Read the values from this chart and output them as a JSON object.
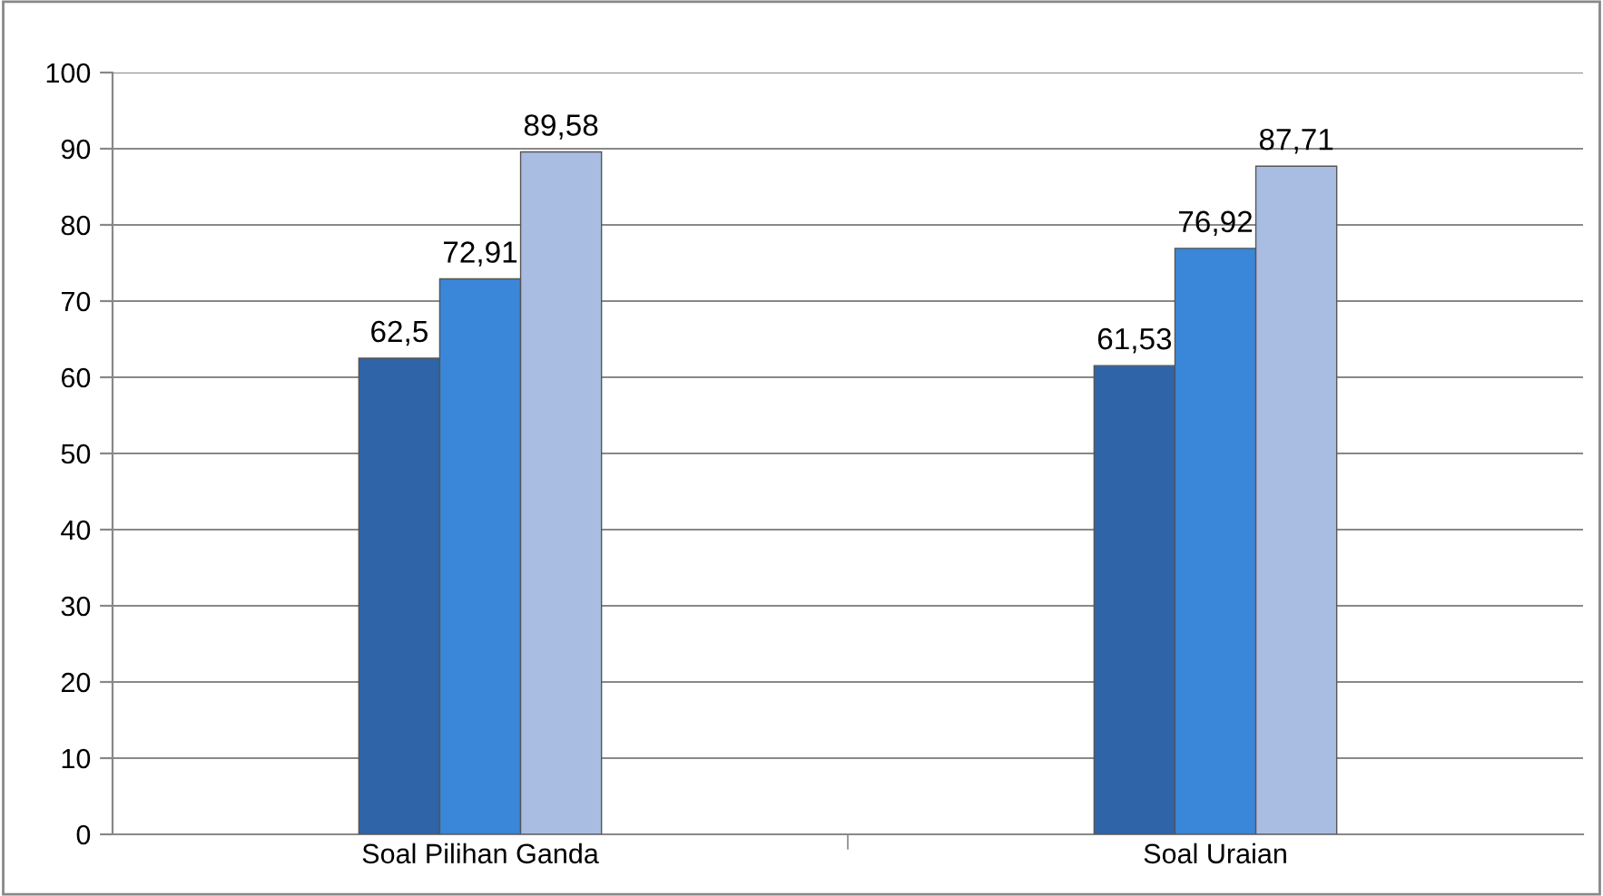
{
  "chart_data": {
    "type": "bar",
    "categories": [
      "Soal Pilihan Ganda",
      "Soal Uraian"
    ],
    "series": [
      {
        "color": "#2f64a8",
        "values": [
          62.5,
          61.53
        ],
        "value_labels": [
          "62,5",
          "61,53"
        ]
      },
      {
        "color": "#3a86d8",
        "values": [
          72.91,
          76.92
        ],
        "value_labels": [
          "72,91",
          "76,92"
        ]
      },
      {
        "color": "#a9bde2",
        "values": [
          89.58,
          87.71
        ],
        "value_labels": [
          "89,58",
          "87,71"
        ]
      }
    ],
    "ylim": [
      0,
      100
    ],
    "yticks": [
      0,
      10,
      20,
      30,
      40,
      50,
      60,
      70,
      80,
      90,
      100
    ],
    "grid": "y",
    "legend": false
  }
}
